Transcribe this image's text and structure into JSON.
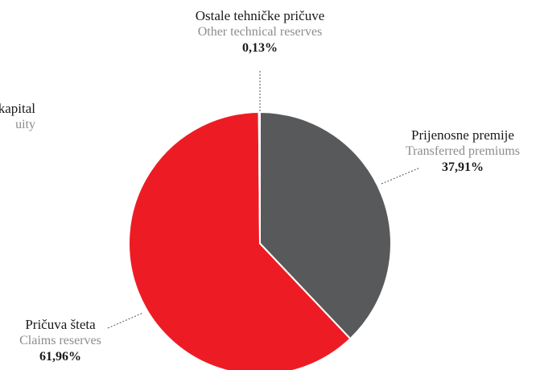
{
  "chart_data": {
    "type": "pie",
    "start_angle_deg": 0,
    "direction": "clockwise",
    "slices": [
      {
        "label_hr": "Prijenosne premije",
        "label_en": "Transferred premiums",
        "percent_label": "37,91%",
        "value": 37.91,
        "color": "#58595b"
      },
      {
        "label_hr": "Pričuva šteta",
        "label_en": "Claims reserves",
        "percent_label": "61,96%",
        "value": 61.96,
        "color": "#ed1c24"
      },
      {
        "label_hr": "Ostale tehničke pričuve",
        "label_en": "Other technical reserves",
        "percent_label": "0,13%",
        "value": 0.13,
        "color": "#bcbec0"
      }
    ],
    "partial_labels": [
      {
        "label_hr": "kapital",
        "label_en": "uity"
      }
    ]
  }
}
